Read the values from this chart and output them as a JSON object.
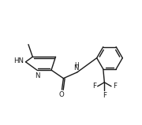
{
  "bg_color": "#ffffff",
  "line_color": "#1a1a1a",
  "line_width": 1.0,
  "font_size": 6.2,
  "figsize": [
    1.8,
    1.59
  ],
  "dpi": 100,
  "xlim": [
    -0.3,
    9.0
  ],
  "ylim": [
    2.0,
    9.2
  ]
}
